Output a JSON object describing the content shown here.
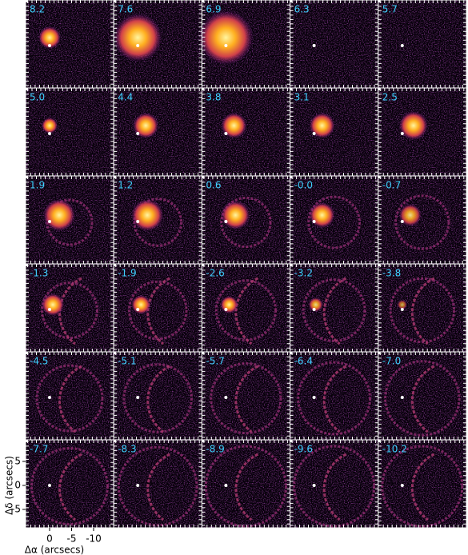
{
  "panels": [
    {
      "label": "8.2"
    },
    {
      "label": "7.6"
    },
    {
      "label": "6.9"
    },
    {
      "label": "6.3"
    },
    {
      "label": "5.7"
    },
    {
      "label": "5.0"
    },
    {
      "label": "4.4"
    },
    {
      "label": "3.8"
    },
    {
      "label": "3.1"
    },
    {
      "label": "2.5"
    },
    {
      "label": "1.9"
    },
    {
      "label": "1.2"
    },
    {
      "label": "0.6"
    },
    {
      "label": "-0.0"
    },
    {
      "label": "-0.7"
    },
    {
      "label": "-1.3"
    },
    {
      "label": "-1.9"
    },
    {
      "label": "-2.6"
    },
    {
      "label": "-3.2"
    },
    {
      "label": "-3.8"
    },
    {
      "label": "-4.5"
    },
    {
      "label": "-5.1"
    },
    {
      "label": "-5.7"
    },
    {
      "label": "-6.4"
    },
    {
      "label": "-7.0"
    },
    {
      "label": "-7.7"
    },
    {
      "label": "-8.3"
    },
    {
      "label": "-8.9"
    },
    {
      "label": "-9.6"
    },
    {
      "label": "-10.2"
    }
  ],
  "axes": {
    "y_label": "Δδ (arcsecs)",
    "x_label": "Δα (arcsecs)",
    "yticks": [
      5,
      0,
      -5
    ],
    "xticks": [
      0,
      -5,
      -10
    ]
  }
}
